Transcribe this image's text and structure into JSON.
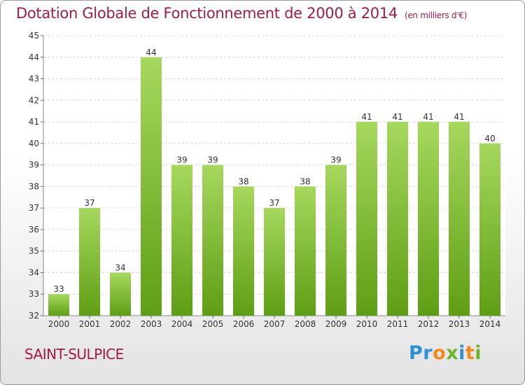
{
  "title": "Dotation Globale de Fonctionnement de 2000 à 2014",
  "units_note": "(en milliers d'€)",
  "city": "SAINT-SULPICE",
  "logo_text": "Proxiti",
  "colors": {
    "title": "#a11c45",
    "bar_light": "#a6d85e",
    "bar_dark": "#5e9e14",
    "logo_blue": "#2f8fd6",
    "logo_orange": "#f08a1c",
    "logo_green": "#6cb52d"
  },
  "chart_data": {
    "type": "bar",
    "title": "Dotation Globale de Fonctionnement de 2000 à 2014",
    "subtitle": "(en milliers d'€)",
    "categories": [
      "2000",
      "2001",
      "2002",
      "2003",
      "2004",
      "2005",
      "2006",
      "2007",
      "2008",
      "2009",
      "2010",
      "2011",
      "2012",
      "2013",
      "2014"
    ],
    "values": [
      33,
      37,
      34,
      44,
      39,
      39,
      38,
      37,
      38,
      39,
      41,
      41,
      41,
      41,
      40
    ],
    "ylim": [
      32,
      45
    ],
    "yticks": [
      32,
      33,
      34,
      35,
      36,
      37,
      38,
      39,
      40,
      41,
      42,
      43,
      44,
      45
    ],
    "grid": true,
    "data_labels": true
  }
}
